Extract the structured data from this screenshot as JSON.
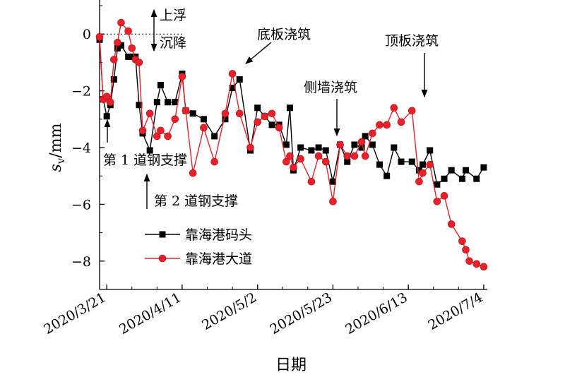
{
  "chart_data": {
    "type": "line",
    "title": "",
    "xlabel": "日期",
    "ylabel": "sv/mm",
    "ylabel_main": "s",
    "ylabel_sub": "v",
    "ylabel_unit": "/mm",
    "xlim": [
      "2020-03-19",
      "2020-07-05"
    ],
    "ylim": [
      -9,
      1
    ],
    "yticks": [
      0,
      -2,
      -4,
      -6,
      -8
    ],
    "ytick_labels": [
      "0",
      "−2",
      "−4",
      "−6",
      "−8"
    ],
    "xtick_dates": [
      "2020-03-21",
      "2020-04-11",
      "2020-05-02",
      "2020-05-23",
      "2020-06-13",
      "2020-07-04"
    ],
    "xtick_labels": [
      "2020/3/21",
      "2020/4/11",
      "2020/5/2",
      "2020/5/23",
      "2020/6/13",
      "2020/7/4"
    ],
    "grid": false,
    "legend_position": "bottom-left",
    "series": [
      {
        "name": "靠海港码头",
        "color": "#000000",
        "marker": "square",
        "points": [
          [
            "2020-03-19",
            -0.2
          ],
          [
            "2020-03-20",
            -2.3
          ],
          [
            "2020-03-21",
            -2.9
          ],
          [
            "2020-03-22",
            -2.5
          ],
          [
            "2020-03-23",
            -1.6
          ],
          [
            "2020-03-24",
            -0.5
          ],
          [
            "2020-03-25",
            -0.4
          ],
          [
            "2020-03-27",
            -0.8
          ],
          [
            "2020-03-28",
            -0.8
          ],
          [
            "2020-03-29",
            -0.8
          ],
          [
            "2020-03-30",
            -2.5
          ],
          [
            "2020-03-31",
            -3.5
          ],
          [
            "2020-04-02",
            -4.1
          ],
          [
            "2020-04-04",
            -2.4
          ],
          [
            "2020-04-05",
            -1.8
          ],
          [
            "2020-04-07",
            -2.4
          ],
          [
            "2020-04-09",
            -2.4
          ],
          [
            "2020-04-11",
            -1.4
          ],
          [
            "2020-04-12",
            -2.7
          ],
          [
            "2020-04-14",
            -2.8
          ],
          [
            "2020-04-17",
            -3.0
          ],
          [
            "2020-04-20",
            -3.6
          ],
          [
            "2020-04-23",
            -3.0
          ],
          [
            "2020-04-25",
            -1.9
          ],
          [
            "2020-04-27",
            -1.6
          ],
          [
            "2020-04-30",
            -4.1
          ],
          [
            "2020-05-02",
            -2.6
          ],
          [
            "2020-05-04",
            -2.9
          ],
          [
            "2020-05-06",
            -3.2
          ],
          [
            "2020-05-08",
            -3.2
          ],
          [
            "2020-05-10",
            -3.9
          ],
          [
            "2020-05-11",
            -2.6
          ],
          [
            "2020-05-12",
            -4.8
          ],
          [
            "2020-05-14",
            -4.0
          ],
          [
            "2020-05-17",
            -4.1
          ],
          [
            "2020-05-19",
            -4.0
          ],
          [
            "2020-05-21",
            -4.1
          ],
          [
            "2020-05-23",
            -5.2
          ],
          [
            "2020-05-25",
            -3.9
          ],
          [
            "2020-05-27",
            -4.5
          ],
          [
            "2020-05-29",
            -3.9
          ],
          [
            "2020-05-31",
            -4.0
          ],
          [
            "2020-06-01",
            -3.6
          ],
          [
            "2020-06-03",
            -3.9
          ],
          [
            "2020-06-05",
            -4.6
          ],
          [
            "2020-06-07",
            -5.0
          ],
          [
            "2020-06-09",
            -4.0
          ],
          [
            "2020-06-11",
            -4.5
          ],
          [
            "2020-06-14",
            -4.5
          ],
          [
            "2020-06-16",
            -4.8
          ],
          [
            "2020-06-17",
            -4.6
          ],
          [
            "2020-06-19",
            -4.1
          ],
          [
            "2020-06-21",
            -5.3
          ],
          [
            "2020-06-23",
            -5.1
          ],
          [
            "2020-06-25",
            -4.8
          ],
          [
            "2020-06-28",
            -5.1
          ],
          [
            "2020-06-29",
            -4.8
          ],
          [
            "2020-07-02",
            -5.1
          ],
          [
            "2020-07-04",
            -4.7
          ]
        ]
      },
      {
        "name": "靠海港大道",
        "color": "#e8202a",
        "marker": "circle",
        "points": [
          [
            "2020-03-19",
            -0.1
          ],
          [
            "2020-03-20",
            -2.3
          ],
          [
            "2020-03-21",
            -2.2
          ],
          [
            "2020-03-22",
            -2.4
          ],
          [
            "2020-03-23",
            -0.9
          ],
          [
            "2020-03-24",
            -0.3
          ],
          [
            "2020-03-25",
            0.4
          ],
          [
            "2020-03-27",
            0.1
          ],
          [
            "2020-03-28",
            -0.5
          ],
          [
            "2020-03-29",
            -0.9
          ],
          [
            "2020-03-30",
            -1.0
          ],
          [
            "2020-03-31",
            -3.4
          ],
          [
            "2020-04-02",
            -2.8
          ],
          [
            "2020-04-04",
            -3.6
          ],
          [
            "2020-04-05",
            -3.4
          ],
          [
            "2020-04-07",
            -3.6
          ],
          [
            "2020-04-09",
            -3.0
          ],
          [
            "2020-04-11",
            -1.5
          ],
          [
            "2020-04-12",
            -2.7
          ],
          [
            "2020-04-14",
            -4.9
          ],
          [
            "2020-04-17",
            -3.3
          ],
          [
            "2020-04-20",
            -4.5
          ],
          [
            "2020-04-23",
            -2.8
          ],
          [
            "2020-04-25",
            -1.4
          ],
          [
            "2020-04-27",
            -2.8
          ],
          [
            "2020-04-30",
            -4.0
          ],
          [
            "2020-05-02",
            -3.1
          ],
          [
            "2020-05-04",
            -2.9
          ],
          [
            "2020-05-06",
            -2.8
          ],
          [
            "2020-05-08",
            -3.3
          ],
          [
            "2020-05-10",
            -4.5
          ],
          [
            "2020-05-11",
            -4.3
          ],
          [
            "2020-05-12",
            -4.7
          ],
          [
            "2020-05-14",
            -4.4
          ],
          [
            "2020-05-17",
            -5.2
          ],
          [
            "2020-05-19",
            -4.3
          ],
          [
            "2020-05-21",
            -4.5
          ],
          [
            "2020-05-23",
            -5.9
          ],
          [
            "2020-05-25",
            -3.9
          ],
          [
            "2020-05-27",
            -4.3
          ],
          [
            "2020-05-29",
            -4.3
          ],
          [
            "2020-05-31",
            -3.8
          ],
          [
            "2020-06-01",
            -4.3
          ],
          [
            "2020-06-03",
            -3.5
          ],
          [
            "2020-06-05",
            -3.2
          ],
          [
            "2020-06-07",
            -3.2
          ],
          [
            "2020-06-09",
            -2.6
          ],
          [
            "2020-06-11",
            -3.1
          ],
          [
            "2020-06-14",
            -2.7
          ],
          [
            "2020-06-16",
            -5.2
          ],
          [
            "2020-06-17",
            -4.9
          ],
          [
            "2020-06-19",
            -4.6
          ],
          [
            "2020-06-21",
            -5.9
          ],
          [
            "2020-06-23",
            -5.7
          ],
          [
            "2020-06-25",
            -6.7
          ],
          [
            "2020-06-28",
            -7.3
          ],
          [
            "2020-06-29",
            -7.6
          ],
          [
            "2020-06-30",
            -8.0
          ],
          [
            "2020-07-02",
            -8.1
          ],
          [
            "2020-07-04",
            -8.2
          ]
        ]
      }
    ],
    "annotations": [
      {
        "id": "shangfu",
        "text": "上浮"
      },
      {
        "id": "chenjiang",
        "text": "沉降"
      },
      {
        "id": "diban",
        "text": "底板浇筑"
      },
      {
        "id": "ceqiang",
        "text": "侧墙浇筑"
      },
      {
        "id": "dingban",
        "text": "顶板浇筑"
      },
      {
        "id": "zhicheng1",
        "text": "第 1 道钢支撑"
      },
      {
        "id": "zhicheng2",
        "text": "第 2 道钢支撑"
      }
    ]
  }
}
